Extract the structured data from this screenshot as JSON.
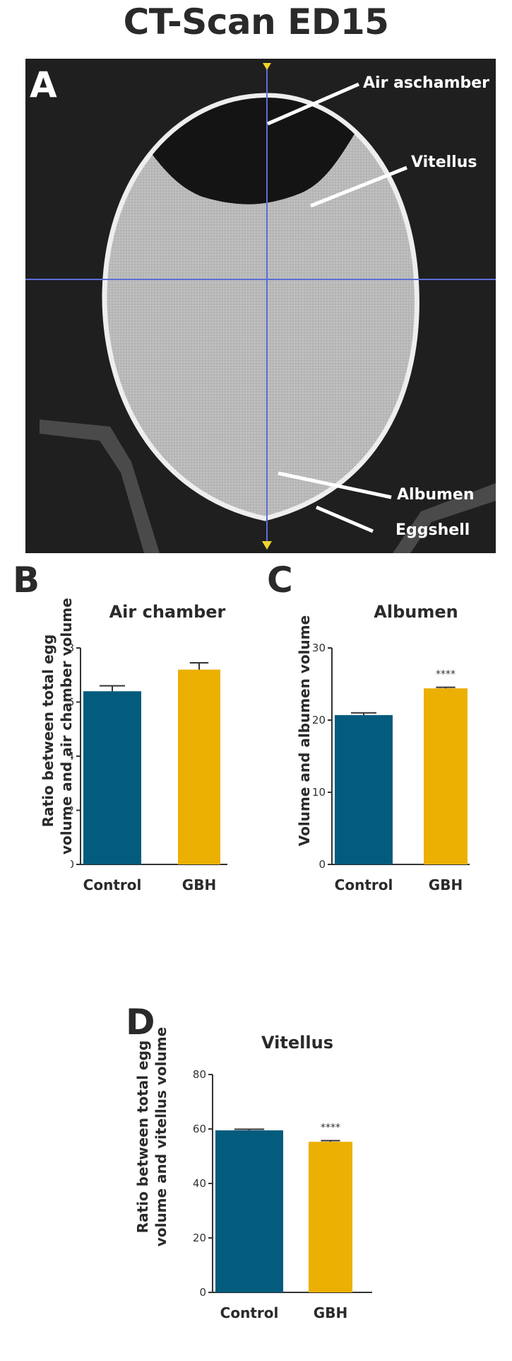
{
  "title": "CT-Scan ED15",
  "panel_a": {
    "letter": "A",
    "labels": {
      "air": "Air aschamber",
      "vitellus": "Vitellus",
      "albumen": "Albumen",
      "eggshell": "Eggshell"
    }
  },
  "colors": {
    "control": "#035c7d",
    "gbh": "#ebb002",
    "axis": "#333333",
    "crosshair": "#5a6fd6",
    "marker": "#f2d22e"
  },
  "chart_data": [
    {
      "panel": "B",
      "type": "bar",
      "title": "Air chamber",
      "ylabel": "Ratio between total egg volume and air chamber volume",
      "ylabel_lines": [
        "Ratio between total egg",
        "volume and air chamber volume"
      ],
      "categories": [
        "Control",
        "GBH"
      ],
      "values": [
        6.4,
        7.2
      ],
      "errors": [
        0.2,
        0.25
      ],
      "ylim": [
        0,
        8
      ],
      "yticks": [
        "0",
        "2",
        "4",
        "6",
        "8"
      ],
      "significance": [
        "",
        ""
      ]
    },
    {
      "panel": "C",
      "type": "bar",
      "title": "Albumen",
      "ylabel": "Volume and albumen volume",
      "ylabel_lines": [
        "Volume and albumen volume"
      ],
      "categories": [
        "Control",
        "GBH"
      ],
      "values": [
        20.7,
        24.4
      ],
      "errors": [
        0.3,
        0.15
      ],
      "ylim": [
        0,
        30
      ],
      "yticks": [
        "0",
        "10",
        "20",
        "30"
      ],
      "significance": [
        "",
        "****"
      ]
    },
    {
      "panel": "D",
      "type": "bar",
      "title": "Vitellus",
      "ylabel": "Ratio between total egg volume and vitellus volume",
      "ylabel_lines": [
        "Ratio between total egg",
        "volume and vitellus volume"
      ],
      "categories": [
        "Control",
        "GBH"
      ],
      "values": [
        59.5,
        55.3
      ],
      "errors": [
        0.4,
        0.4
      ],
      "ylim": [
        0,
        80
      ],
      "yticks": [
        "0",
        "20",
        "40",
        "60",
        "80"
      ],
      "significance": [
        "",
        "****"
      ]
    }
  ]
}
